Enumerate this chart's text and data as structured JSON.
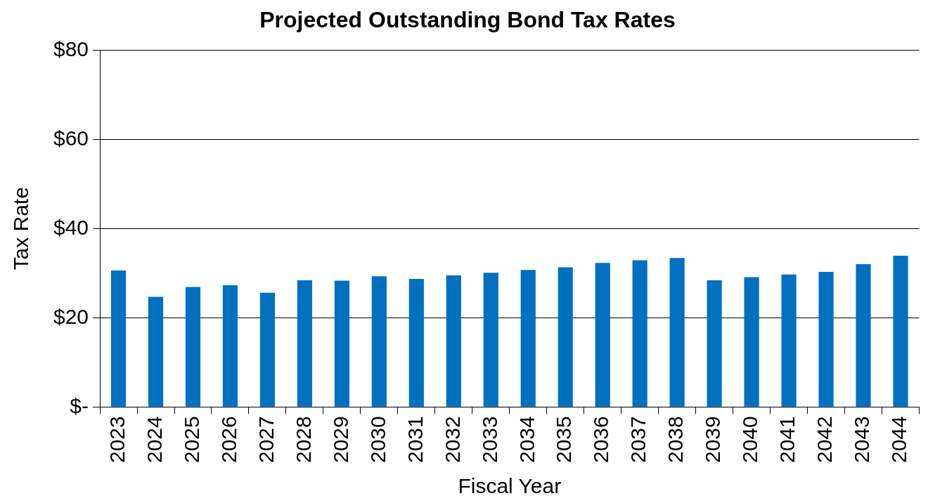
{
  "chart_data": {
    "type": "bar",
    "title": "Projected Outstanding Bond Tax Rates",
    "xlabel": "Fiscal Year",
    "ylabel": "Tax Rate",
    "categories": [
      "2023",
      "2024",
      "2025",
      "2026",
      "2027",
      "2028",
      "2029",
      "2030",
      "2031",
      "2032",
      "2033",
      "2034",
      "2035",
      "2036",
      "2037",
      "2038",
      "2039",
      "2040",
      "2041",
      "2042",
      "2043",
      "2044"
    ],
    "values": [
      30.6,
      24.7,
      26.9,
      27.3,
      25.6,
      28.4,
      28.3,
      29.3,
      28.7,
      29.5,
      30.1,
      30.7,
      31.3,
      32.3,
      32.9,
      33.4,
      28.4,
      29.1,
      29.7,
      30.3,
      32.0,
      33.9
    ],
    "color": "#0070c0",
    "ylim": [
      0,
      80
    ],
    "yticks": [
      {
        "value": 0,
        "label": "$-"
      },
      {
        "value": 20,
        "label": "$20"
      },
      {
        "value": 40,
        "label": "$40"
      },
      {
        "value": 60,
        "label": "$60"
      },
      {
        "value": 80,
        "label": "$80"
      }
    ],
    "grid": "y",
    "legend": false
  }
}
